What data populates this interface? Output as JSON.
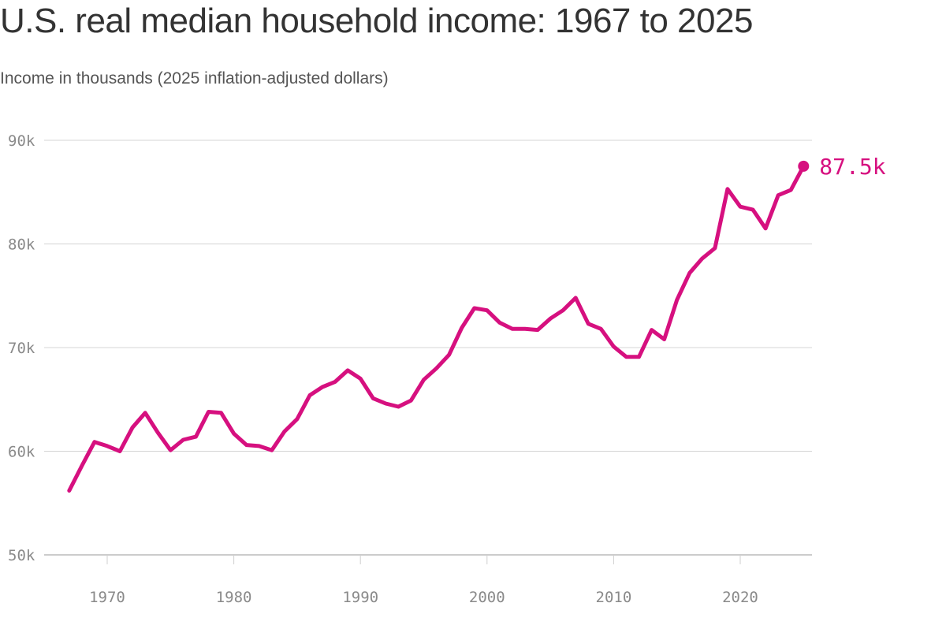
{
  "chart_data": {
    "type": "line",
    "title": "U.S. real median household income: 1967 to 2025",
    "subtitle": "Income in thousands (2025 inflation-adjusted dollars)",
    "xlabel": "",
    "ylabel": "",
    "xlim": [
      1964,
      2026
    ],
    "ylim": [
      50,
      90
    ],
    "x_ticks": [
      1970,
      1980,
      1990,
      2000,
      2010,
      2020
    ],
    "x_tick_labels": [
      "1970",
      "1980",
      "1990",
      "2000",
      "2010",
      "2020"
    ],
    "y_ticks": [
      50,
      60,
      70,
      80,
      90
    ],
    "y_tick_labels": [
      "50k",
      "60k",
      "70k",
      "80k",
      "90k"
    ],
    "grid": true,
    "color": "#d6107f",
    "series": [
      {
        "x": [
          1967,
          1968,
          1969,
          1970,
          1971,
          1972,
          1973,
          1974,
          1975,
          1976,
          1977,
          1978,
          1979,
          1980,
          1981,
          1982,
          1983,
          1984,
          1985,
          1986,
          1987,
          1988,
          1989,
          1990,
          1991,
          1992,
          1993,
          1994,
          1995,
          1996,
          1997,
          1998,
          1999,
          2000,
          2001,
          2002,
          2003,
          2004,
          2005,
          2006,
          2007,
          2008,
          2009,
          2010,
          2011,
          2012,
          2013,
          2014,
          2015,
          2016,
          2017,
          2018,
          2019,
          2020,
          2021,
          2022,
          2023,
          2024,
          2025
        ],
        "y": [
          56.2,
          58.6,
          60.9,
          60.5,
          60.0,
          62.3,
          63.7,
          61.8,
          60.1,
          61.1,
          61.4,
          63.8,
          63.7,
          61.7,
          60.6,
          60.5,
          60.1,
          61.9,
          63.1,
          65.4,
          66.2,
          66.7,
          67.8,
          67.0,
          65.1,
          64.6,
          64.3,
          64.9,
          66.9,
          68.0,
          69.3,
          71.9,
          73.8,
          73.6,
          72.4,
          71.8,
          71.8,
          71.7,
          72.8,
          73.6,
          74.8,
          72.3,
          71.8,
          70.1,
          69.1,
          69.1,
          71.7,
          70.8,
          74.6,
          77.2,
          78.6,
          79.6,
          85.3,
          83.6,
          83.3,
          81.5,
          84.7,
          85.2,
          87.5
        ]
      }
    ],
    "end_label": "87.5k"
  }
}
